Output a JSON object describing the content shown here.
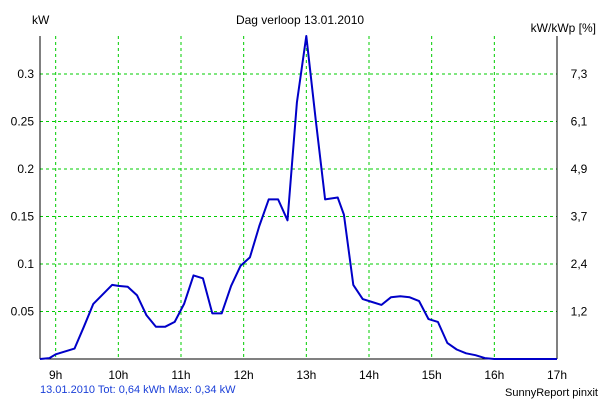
{
  "colors": {
    "line": "#0000c8",
    "grid": "#00cc00",
    "axis": "#000000"
  },
  "chart_data": {
    "type": "line",
    "title": "Dag  verloop 13.01.2010",
    "ylabel_left": "kW",
    "ylabel_right": "kW/kWp [%]",
    "xlim": [
      8.75,
      17.0
    ],
    "ylim": [
      0,
      0.34
    ],
    "x_ticks": [
      9,
      10,
      11,
      12,
      13,
      14,
      15,
      16,
      17
    ],
    "x_tick_labels": [
      "9h",
      "10h",
      "11h",
      "12h",
      "13h",
      "14h",
      "15h",
      "16h",
      "17h"
    ],
    "y_ticks_left": [
      0.05,
      0.1,
      0.15,
      0.2,
      0.25,
      0.3
    ],
    "y_tick_labels_left": [
      "0.05",
      "0.1",
      "0.15",
      "0.2",
      "0.25",
      "0.3"
    ],
    "y_ticks_right": [
      0.05,
      0.1,
      0.15,
      0.2,
      0.25,
      0.3
    ],
    "y_tick_labels_right": [
      "1,2",
      "2,4",
      "3,7",
      "4,9",
      "6,1",
      "7,3"
    ],
    "grid": true,
    "series": [
      {
        "x": [
          8.75,
          8.9,
          9.0,
          9.15,
          9.3,
          9.45,
          9.6,
          9.75,
          9.9,
          10.0,
          10.15,
          10.3,
          10.45,
          10.6,
          10.75,
          10.9,
          11.05,
          11.2,
          11.35,
          11.5,
          11.65,
          11.8,
          11.95,
          12.1,
          12.25,
          12.4,
          12.55,
          12.7,
          12.85,
          13.0,
          13.15,
          13.3,
          13.5,
          13.6,
          13.75,
          13.9,
          14.05,
          14.2,
          14.35,
          14.5,
          14.65,
          14.8,
          14.95,
          15.1,
          15.25,
          15.4,
          15.55,
          15.7,
          15.85,
          16.0,
          16.15,
          16.3,
          16.45,
          16.6,
          16.75,
          16.9,
          17.0
        ],
        "y": [
          0.0,
          0.001,
          0.005,
          0.008,
          0.011,
          0.034,
          0.058,
          0.068,
          0.078,
          0.077,
          0.076,
          0.067,
          0.046,
          0.034,
          0.034,
          0.039,
          0.058,
          0.088,
          0.085,
          0.048,
          0.048,
          0.077,
          0.098,
          0.107,
          0.14,
          0.168,
          0.168,
          0.146,
          0.27,
          0.34,
          0.252,
          0.168,
          0.17,
          0.152,
          0.078,
          0.063,
          0.06,
          0.057,
          0.065,
          0.066,
          0.065,
          0.061,
          0.042,
          0.039,
          0.017,
          0.01,
          0.006,
          0.004,
          0.001,
          0.0,
          0.0,
          0.0,
          0.0,
          0.0,
          0.0,
          0.0,
          0.0
        ]
      }
    ]
  },
  "footer": {
    "left": "13.01.2010 Tot: 0,64 kWh Max: 0,34 kW",
    "right": "SunnyReport pinxit"
  }
}
